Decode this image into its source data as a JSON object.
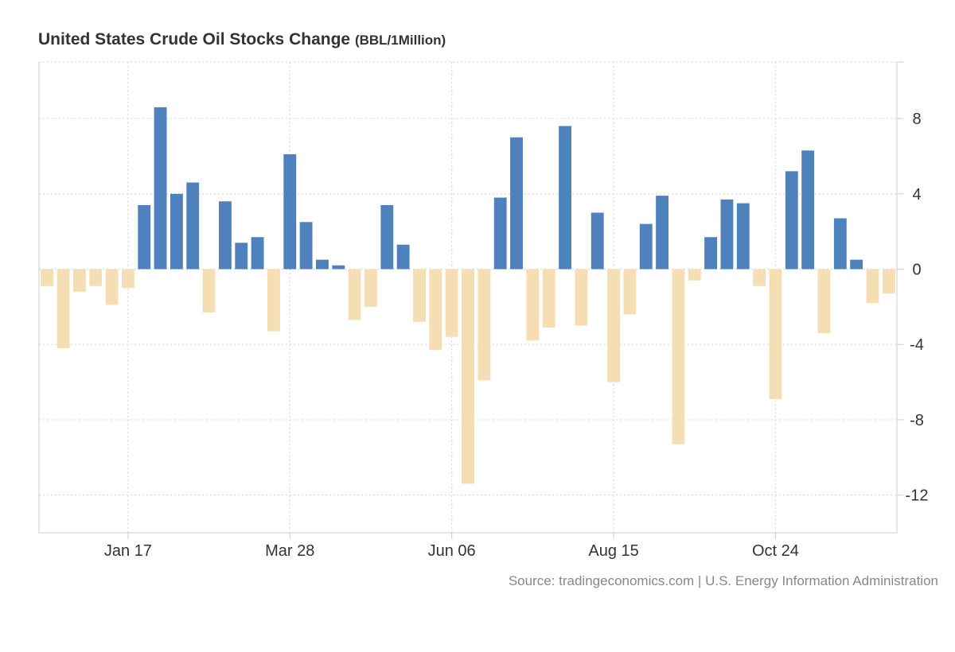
{
  "title": "United States Crude Oil Stocks Change",
  "unit_label": "(BBL/1Million)",
  "source": "Source: tradingeconomics.com | U.S. Energy Information Administration",
  "colors": {
    "positive": "#4f81bd",
    "negative": "#f5deb3",
    "grid": "#d9d9d9",
    "axis": "#cccccc"
  },
  "chart_data": {
    "type": "bar",
    "title": "United States Crude Oil Stocks Change",
    "xlabel": "",
    "ylabel": "",
    "ylim": [
      -14,
      11
    ],
    "yticks": [
      8,
      4,
      0,
      -4,
      -8,
      -12
    ],
    "ytick_labels": [
      "8",
      "4",
      "0",
      "-4",
      "-8",
      "-12"
    ],
    "xtick_labels": [
      {
        "label": "Jan 17",
        "index": 5.5
      },
      {
        "label": "Mar 28",
        "index": 15.5
      },
      {
        "label": "Jun 06",
        "index": 25.5
      },
      {
        "label": "Aug 15",
        "index": 35.5
      },
      {
        "label": "Oct 24",
        "index": 45.5
      }
    ],
    "grid": true,
    "values": [
      -0.9,
      -4.2,
      -1.2,
      -0.9,
      -1.9,
      -1.0,
      3.4,
      8.6,
      4.0,
      4.6,
      -2.3,
      3.6,
      1.4,
      1.7,
      -3.3,
      6.1,
      2.5,
      0.5,
      0.2,
      -2.7,
      -2.0,
      3.4,
      1.3,
      -2.8,
      -4.3,
      -3.6,
      -11.4,
      -5.9,
      3.8,
      7.0,
      -3.8,
      -3.1,
      7.6,
      -3.0,
      3.0,
      -6.0,
      -2.4,
      2.4,
      3.9,
      -9.3,
      -0.6,
      1.7,
      3.7,
      3.5,
      -0.9,
      -6.9,
      5.2,
      6.3,
      -3.4,
      2.7,
      0.5,
      -1.8,
      -1.3
    ]
  }
}
